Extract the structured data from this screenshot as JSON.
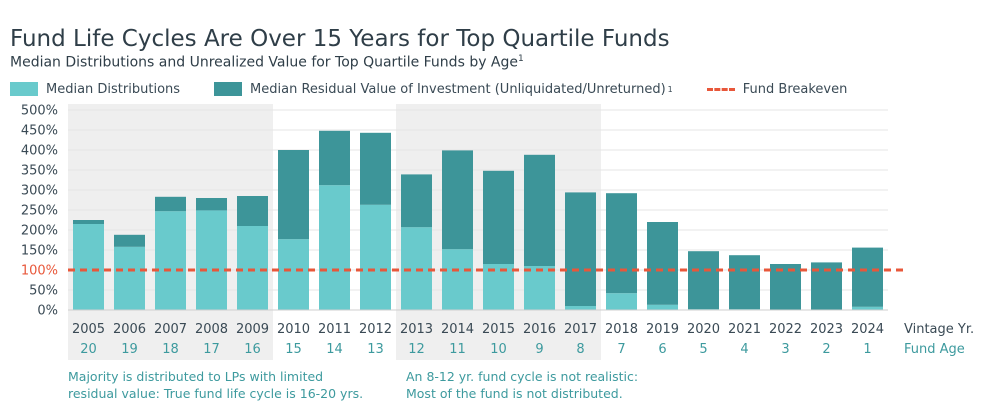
{
  "title": "Fund Life Cycles Are Over 15 Years for Top Quartile Funds",
  "subtitle": "Median Distributions and Unrealized Value for Top Quartile Funds by Age",
  "subtitle_footnote": "1",
  "legend": {
    "distributions": "Median Distributions",
    "residual": "Median Residual Value of Investment (Unliquidated/Unreturned)",
    "residual_footnote": "1",
    "breakeven": "Fund Breakeven"
  },
  "colors": {
    "distributions": "#69cacc",
    "residual": "#3d9599",
    "breakeven": "#e8573a",
    "shade": "#efefef",
    "fund_age": "#3d9a9e",
    "text": "#3a4a55"
  },
  "notes": {
    "left_line1": "Majority is distributed to LPs with limited",
    "left_line2": "residual value: True fund life cycle is 16-20 yrs.",
    "right_line1": "An 8-12 yr. fund cycle is not realistic:",
    "right_line2": "Most of the fund is not distributed."
  },
  "chart_data": {
    "type": "bar",
    "stacked": true,
    "x_row_label": "Vintage Yr.",
    "age_row_label": "Fund Age",
    "categories": [
      "2005",
      "2006",
      "2007",
      "2008",
      "2009",
      "2010",
      "2011",
      "2012",
      "2013",
      "2014",
      "2015",
      "2016",
      "2017",
      "2018",
      "2019",
      "2020",
      "2021",
      "2022",
      "2023",
      "2024"
    ],
    "fund_age": [
      "20",
      "19",
      "18",
      "17",
      "16",
      "15",
      "14",
      "13",
      "12",
      "11",
      "10",
      "9",
      "8",
      "7",
      "6",
      "5",
      "4",
      "3",
      "2",
      "1"
    ],
    "series": [
      {
        "name": "Median Distributions",
        "values": [
          215,
          158,
          247,
          249,
          210,
          177,
          312,
          263,
          207,
          152,
          115,
          110,
          10,
          42,
          13,
          2,
          2,
          1,
          1,
          8
        ]
      },
      {
        "name": "Median Residual Value of Investment (Unliquidated/Unreturned)",
        "values": [
          10,
          30,
          36,
          31,
          75,
          223,
          136,
          180,
          132,
          247,
          233,
          278,
          284,
          250,
          207,
          145,
          135,
          114,
          118,
          148
        ]
      }
    ],
    "breakeven": 100,
    "yticks": [
      "0%",
      "50%",
      "100%",
      "150%",
      "200%",
      "250%",
      "300%",
      "350%",
      "400%",
      "450%",
      "500%"
    ],
    "ylim": [
      0,
      500
    ],
    "highlight_tick": "100%",
    "shaded_ranges": [
      [
        0,
        4
      ],
      [
        8,
        12
      ]
    ],
    "grid": true
  }
}
